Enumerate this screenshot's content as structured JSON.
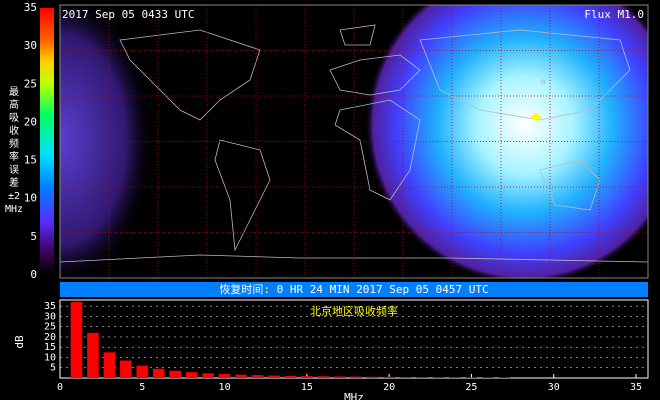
{
  "header": {
    "timestamp": "2017 Sep 05 0433 UTC",
    "flux": "Flux M1.0"
  },
  "colorbar": {
    "label": [
      "最",
      "高",
      "吸",
      "收",
      "频",
      "率",
      "误",
      "差",
      "±2",
      "MHz"
    ],
    "range": [
      0,
      35
    ],
    "ticks": [
      0,
      5,
      10,
      15,
      20,
      25,
      30,
      35
    ]
  },
  "recovery": "恢复时间: 0 HR 24 MIN 2017 Sep 05 0457 UTC",
  "chart_data": {
    "type": "bar",
    "title": "北京地区吸收频率",
    "ylabel": "dB",
    "xlabel": "MHz",
    "x": [
      1,
      2,
      3,
      4,
      5,
      6,
      7,
      8,
      9,
      10,
      11,
      12,
      13,
      14,
      15,
      16,
      17,
      18,
      19,
      20,
      21,
      22,
      23,
      24,
      25,
      26,
      27
    ],
    "values": [
      37,
      22,
      12.5,
      8.5,
      6,
      4.5,
      3.5,
      2.8,
      2.3,
      1.9,
      1.6,
      1.4,
      1.2,
      1.05,
      0.95,
      0.85,
      0.75,
      0.7,
      0.6,
      0.55,
      0.5,
      0.45,
      0.4,
      0.4,
      0.35,
      0.3,
      0.3
    ],
    "color": "#ff0000",
    "xlim": [
      0,
      35
    ],
    "xticks": [
      0,
      5,
      10,
      15,
      20,
      25,
      30,
      35
    ],
    "ylim": [
      0,
      38
    ],
    "yticks": [
      5,
      10,
      15,
      20,
      25,
      30,
      35
    ]
  }
}
